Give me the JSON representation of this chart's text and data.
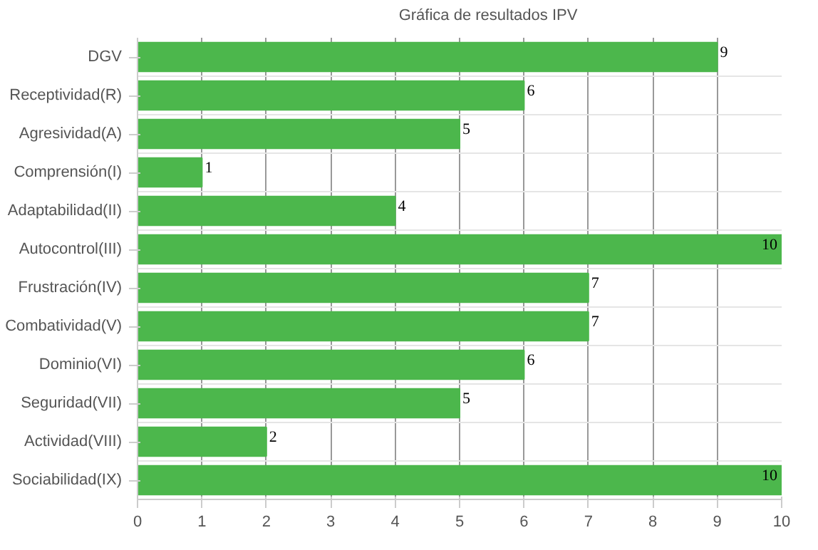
{
  "chart_data": {
    "type": "bar",
    "orientation": "horizontal",
    "categories": [
      "DGV",
      "Receptividad(R)",
      "Agresividad(A)",
      "Comprensión(I)",
      "Adaptabilidad(II)",
      "Autocontrol(III)",
      "Frustración(IV)",
      "Combatividad(V)",
      "Dominio(VI)",
      "Seguridad(VII)",
      "Actividad(VIII)",
      "Sociabilidad(IX)"
    ],
    "series": [
      {
        "name": "Gráfica de resultados IPV",
        "color": "#4cb74c",
        "values": [
          9,
          6,
          5,
          1,
          4,
          10,
          7,
          7,
          6,
          5,
          2,
          10
        ]
      }
    ],
    "xlim": [
      0,
      10
    ],
    "xticks": [
      0,
      1,
      2,
      3,
      4,
      5,
      6,
      7,
      8,
      9,
      10
    ],
    "grid": true,
    "legend": "top",
    "data_labels": true
  }
}
